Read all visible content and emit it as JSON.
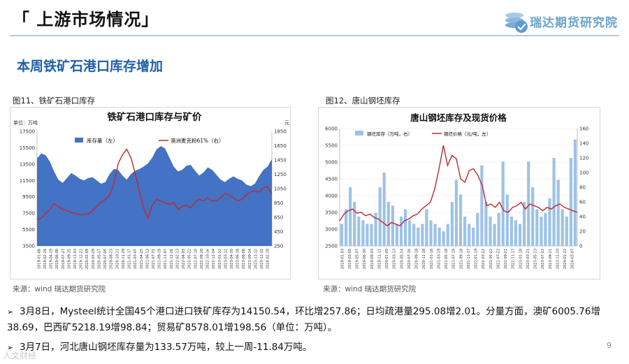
{
  "header": {
    "title": "「 上游市场情况」"
  },
  "logo": {
    "text": "瑞达期货研究院"
  },
  "section": {
    "title": "本周铁矿石港口库存增加"
  },
  "figures": [
    {
      "caption": "图11、铁矿石港口库存",
      "source": "来源：wind    瑞达期货研究院"
    },
    {
      "caption": "图12、唐山钢坯库存",
      "source": "来源：wind    瑞达期货研究院"
    }
  ],
  "bullets": [
    {
      "text": "3月8日，Mysteel统计全国45个港口进口铁矿库存为14150.54，环比增257.86；日均疏港量295.08增2.01。分量方面，澳矿6005.76增38.69，巴西矿5218.19增98.84；贸易矿8578.01增198.56（单位：万吨）。"
    },
    {
      "text": "3月7日，河北唐山钢坯库存量为133.57万吨，较上一周-11.84万吨。"
    }
  ],
  "page_number": "9",
  "watermark": "人文财经",
  "colors": {
    "area_blue": "#4472c4",
    "line_red": "#c0282d",
    "bar_blue": "#9dc3e6",
    "title_blue": "#1f5fa8"
  },
  "chart_data": [
    {
      "type": "area",
      "title": "铁矿石港口库存与矿价",
      "unit_left": "单位：万吨",
      "unit_right": "元",
      "ylim_left": [
        3500,
        17500
      ],
      "yticks_left": [
        "17500",
        "15500",
        "13500",
        "11500",
        "9500",
        "7500",
        "5500",
        "3500"
      ],
      "ylim_right": [
        250,
        1850
      ],
      "yticks_right": [
        "1850",
        "1650",
        "1450",
        "1250",
        "1050",
        "850",
        "650",
        "450",
        "250"
      ],
      "xticks": [
        "2019-01-08",
        "2019-02-26",
        "2019-04-19",
        "2019-06-08",
        "2019-07-27",
        "2019-09-15",
        "2019-11-03",
        "2019-12-22",
        "2020-02-09",
        "2020-03-29",
        "2020-05-17",
        "2020-07-05",
        "2020-08-23",
        "2020-10-11",
        "2020-11-29",
        "2021-01-17",
        "2021-03-07",
        "2021-04-25",
        "2021-06-13",
        "2021-07-31",
        "2021-09-19",
        "2021-11-07",
        "2021-12-26",
        "2022-02-13",
        "2022-04-03",
        "2022-05-22",
        "2022-07-10",
        "2022-08-28",
        "2022-10-16",
        "2022-12-04",
        "2023-01-22",
        "2023-03-12",
        "2023-04-30",
        "2023-06-18",
        "2023-08-06",
        "2023-09-24",
        "2023-11-12",
        "2023-12-31",
        "2024-02-18"
      ],
      "series": [
        {
          "name": "库存量（左）",
          "axis": "left",
          "values": [
            14200,
            14800,
            14600,
            13800,
            12600,
            11600,
            11200,
            11800,
            12400,
            12100,
            11700,
            11500,
            11800,
            11900,
            11500,
            11100,
            11300,
            12300,
            12900,
            12800,
            12100,
            11600,
            12300,
            12700,
            12900,
            13200,
            13600,
            14300,
            15300,
            15700,
            15400,
            14300,
            13200,
            12600,
            12800,
            13300,
            13400,
            12700,
            12100,
            12500,
            13100,
            12800,
            12200,
            11600,
            11300,
            11700,
            12000,
            11700,
            11500,
            11000,
            10800,
            11100,
            12000,
            12800,
            13200,
            14100
          ]
        },
        {
          "name": "澳洲麦克粉61%（右）",
          "axis": "right",
          "values": [
            620,
            640,
            700,
            760,
            840,
            800,
            760,
            740,
            720,
            700,
            690,
            690,
            700,
            740,
            800,
            860,
            900,
            960,
            1120,
            1400,
            1520,
            1600,
            1480,
            1260,
            1000,
            780,
            640,
            820,
            900,
            880,
            850,
            830,
            860,
            760,
            800,
            820,
            780,
            860,
            900,
            880,
            920,
            880,
            880,
            920,
            980,
            960,
            920,
            880,
            900,
            960,
            1000,
            1020,
            1000,
            1060,
            1080,
            970
          ]
        }
      ]
    },
    {
      "type": "bar",
      "title": "唐山钢坯库存及现货价格",
      "ylim_left": [
        2500,
        6000
      ],
      "yticks_left": [
        "6000",
        "5500",
        "5000",
        "4500",
        "4000",
        "3500",
        "3000",
        "2500"
      ],
      "ylim_right": [
        0,
        160
      ],
      "yticks_right": [
        "160",
        "140",
        "120",
        "100",
        "80",
        "60",
        "40",
        "20",
        "0"
      ],
      "xticks": [
        "2019-01-03",
        "2019-03-05",
        "2019-05-07",
        "2019-06-30",
        "2019-09-03",
        "2019-11-11",
        "2020-01-09",
        "2020-03-13",
        "2020-05-14",
        "2020-07-16",
        "2020-09-18",
        "2020-11-18",
        "2021-01-18",
        "2021-03-19",
        "2021-05-18",
        "2021-07-19",
        "2021-09-18",
        "2021-11-17",
        "2022-01-19",
        "2022-03-22",
        "2022-05-22",
        "2022-07-22",
        "2022-09-21",
        "2022-11-17",
        "2023-01-18",
        "2023-03-21",
        "2023-05-23",
        "2023-07-22",
        "2023-09-21",
        "2023-11-20",
        "2024-01-22",
        "2024-03-07"
      ],
      "series": [
        {
          "name": "钢坯库存（万吨，右）",
          "axis": "right",
          "values": [
            30,
            50,
            80,
            60,
            40,
            35,
            30,
            30,
            45,
            80,
            100,
            60,
            55,
            30,
            40,
            50,
            35,
            30,
            25,
            30,
            50,
            35,
            30,
            25,
            20,
            30,
            60,
            90,
            70,
            40,
            30,
            25,
            45,
            110,
            60,
            40,
            30,
            45,
            115,
            70,
            40,
            35,
            30,
            60,
            115,
            80,
            50,
            40,
            45,
            65,
            120,
            90,
            50,
            40,
            120,
            145
          ]
        },
        {
          "name": "钢坯价格（元/吨，左）",
          "axis": "left",
          "values": [
            3250,
            3450,
            3550,
            3600,
            3480,
            3500,
            3400,
            3450,
            3350,
            3300,
            3200,
            3100,
            3200,
            3150,
            3100,
            3250,
            3300,
            3400,
            3450,
            3600,
            3700,
            3800,
            4200,
            4800,
            5500,
            4900,
            5200,
            5100,
            4500,
            4400,
            4750,
            4800,
            4600,
            4300,
            3700,
            3750,
            3650,
            3800,
            3550,
            3500,
            3650,
            3700,
            3800,
            3600,
            3750,
            3700,
            3650,
            3550,
            3650,
            3600,
            3700,
            3750,
            3650,
            3600,
            3550,
            3500
          ]
        }
      ]
    }
  ]
}
